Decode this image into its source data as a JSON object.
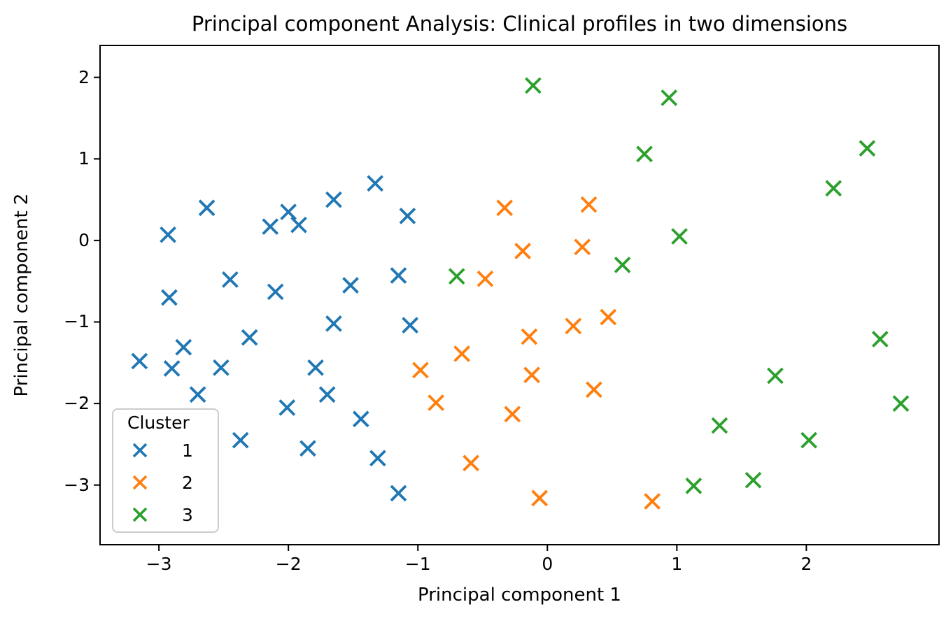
{
  "chart_data": {
    "type": "scatter",
    "title": "Principal component Analysis: Clinical profiles in two dimensions",
    "xlabel": "Principal component 1",
    "ylabel": "Principal component 2",
    "xlim": [
      -3.46,
      3.03
    ],
    "ylim": [
      -3.74,
      2.4
    ],
    "xticks": [
      -3,
      -2,
      -1,
      0,
      1,
      2
    ],
    "yticks": [
      2,
      1,
      0,
      -1,
      -2,
      -3
    ],
    "grid": false,
    "marker": "x",
    "legend": {
      "title": "Cluster",
      "position": "lower left"
    },
    "axis_color": "#000000",
    "series": [
      {
        "name": "1",
        "color": "#1f77b4",
        "points": [
          [
            -2.63,
            0.4
          ],
          [
            -2.93,
            0.07
          ],
          [
            -2.14,
            0.17
          ],
          [
            -2.0,
            0.35
          ],
          [
            -1.92,
            0.19
          ],
          [
            -1.65,
            0.5
          ],
          [
            -1.33,
            0.7
          ],
          [
            -1.08,
            0.3
          ],
          [
            -2.45,
            -0.48
          ],
          [
            -2.1,
            -0.63
          ],
          [
            -1.52,
            -0.55
          ],
          [
            -1.15,
            -0.43
          ],
          [
            -2.92,
            -0.7
          ],
          [
            -1.06,
            -1.04
          ],
          [
            -1.65,
            -1.02
          ],
          [
            -2.3,
            -1.19
          ],
          [
            -2.81,
            -1.31
          ],
          [
            -3.15,
            -1.48
          ],
          [
            -2.9,
            -1.57
          ],
          [
            -2.52,
            -1.56
          ],
          [
            -1.79,
            -1.56
          ],
          [
            -2.7,
            -1.89
          ],
          [
            -1.7,
            -1.89
          ],
          [
            -2.01,
            -2.05
          ],
          [
            -1.44,
            -2.19
          ],
          [
            -2.37,
            -2.45
          ],
          [
            -1.85,
            -2.55
          ],
          [
            -1.31,
            -2.67
          ],
          [
            -1.15,
            -3.1
          ]
        ]
      },
      {
        "name": "2",
        "color": "#ff7f0e",
        "points": [
          [
            -0.33,
            0.4
          ],
          [
            0.32,
            0.44
          ],
          [
            -0.19,
            -0.13
          ],
          [
            0.27,
            -0.08
          ],
          [
            -0.48,
            -0.47
          ],
          [
            0.2,
            -1.05
          ],
          [
            0.47,
            -0.94
          ],
          [
            -0.14,
            -1.18
          ],
          [
            -0.66,
            -1.39
          ],
          [
            -0.98,
            -1.59
          ],
          [
            -0.12,
            -1.65
          ],
          [
            0.36,
            -1.83
          ],
          [
            -0.86,
            -1.99
          ],
          [
            -0.27,
            -2.13
          ],
          [
            -0.59,
            -2.73
          ],
          [
            -0.06,
            -3.16
          ],
          [
            0.81,
            -3.2
          ]
        ]
      },
      {
        "name": "3",
        "color": "#2ca02c",
        "points": [
          [
            -0.11,
            1.9
          ],
          [
            0.94,
            1.75
          ],
          [
            0.75,
            1.06
          ],
          [
            2.47,
            1.13
          ],
          [
            2.21,
            0.64
          ],
          [
            1.02,
            0.05
          ],
          [
            0.58,
            -0.3
          ],
          [
            -0.7,
            -0.44
          ],
          [
            2.57,
            -1.21
          ],
          [
            1.76,
            -1.66
          ],
          [
            2.73,
            -2.0
          ],
          [
            1.33,
            -2.27
          ],
          [
            2.02,
            -2.45
          ],
          [
            1.13,
            -3.01
          ],
          [
            1.59,
            -2.94
          ]
        ]
      }
    ]
  }
}
